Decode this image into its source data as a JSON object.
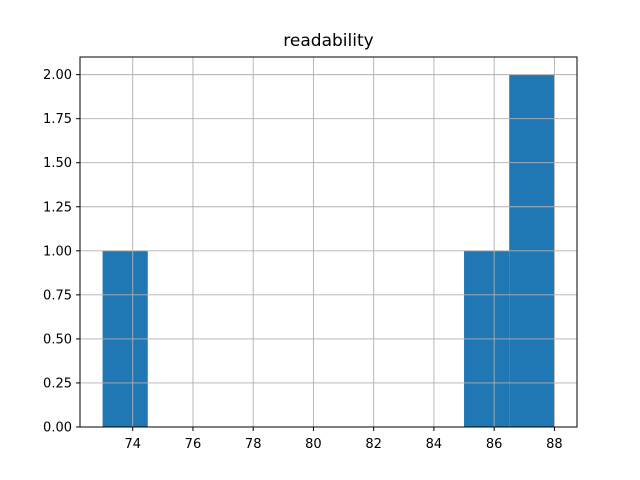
{
  "chart_data": {
    "type": "bar",
    "subtype": "histogram",
    "title": "readability",
    "xlabel": "",
    "ylabel": "",
    "bin_edges": [
      73.0,
      74.5,
      76.0,
      77.5,
      79.0,
      80.5,
      82.0,
      83.5,
      85.0,
      86.5,
      88.0
    ],
    "counts": [
      1,
      0,
      0,
      0,
      0,
      0,
      0,
      0,
      1,
      2
    ],
    "bars": [
      {
        "x0": 73.0,
        "x1": 74.5,
        "count": 1
      },
      {
        "x0": 85.0,
        "x1": 86.5,
        "count": 1
      },
      {
        "x0": 86.5,
        "x1": 88.0,
        "count": 2
      }
    ],
    "xlim": [
      72.25,
      88.75
    ],
    "ylim": [
      0,
      2.1
    ],
    "xticks": [
      74,
      76,
      78,
      80,
      82,
      84,
      86,
      88
    ],
    "ytick_labels": [
      "0.00",
      "0.25",
      "0.50",
      "0.75",
      "1.00",
      "1.25",
      "1.50",
      "1.75",
      "2.00"
    ],
    "grid": true,
    "legend": null,
    "colors": {
      "bar_fill": "#1f77b4",
      "grid_line": "#b0b0b0",
      "spine": "#000000",
      "background": "#ffffff"
    }
  }
}
